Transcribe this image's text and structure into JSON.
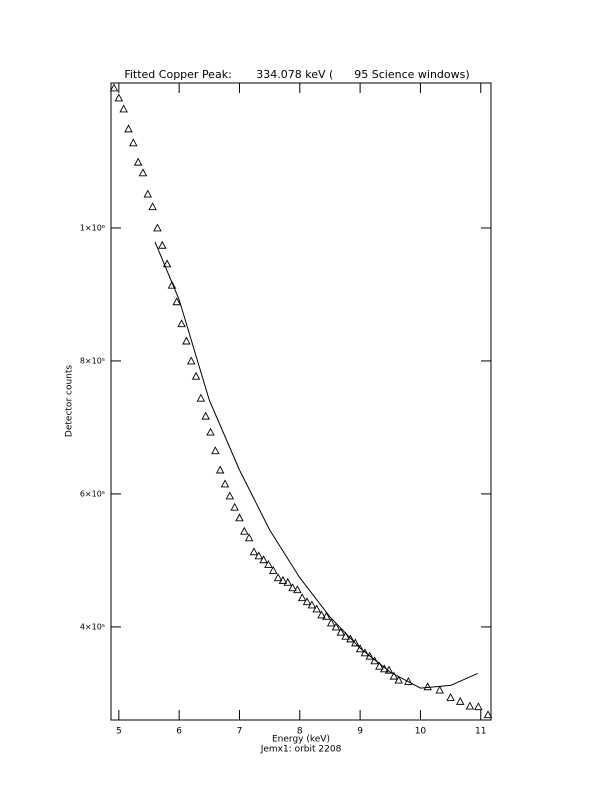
{
  "chart_data": {
    "type": "scatter",
    "title": "Fitted Copper Peak:       334.078 keV (      95 Science windows)",
    "x_label": "Energy (keV)",
    "subtitle": "Jemx1: orbit 2208",
    "y_label": "Detector counts",
    "xlim": [
      4.87,
      11.17
    ],
    "ylim": [
      260000,
      1218000
    ],
    "xticks": [
      5,
      6,
      7,
      8,
      9,
      10,
      11
    ],
    "yticks": [
      {
        "value": 400000,
        "label": "4×10⁵"
      },
      {
        "value": 600000,
        "label": "6×10⁵"
      },
      {
        "value": 800000,
        "label": "8×10⁵"
      },
      {
        "value": 1000000,
        "label": "1×10⁶"
      }
    ],
    "series": [
      {
        "marker": "triangle",
        "color": "#000000",
        "x": [
          4.92,
          5.0,
          5.08,
          5.16,
          5.24,
          5.32,
          5.4,
          5.48,
          5.56,
          5.64,
          5.72,
          5.8,
          5.88,
          5.96,
          6.04,
          6.12,
          6.2,
          6.28,
          6.36,
          6.44,
          6.52,
          6.6,
          6.68,
          6.76,
          6.84,
          6.92,
          7.0,
          7.08,
          7.16,
          7.24,
          7.32,
          7.4,
          7.48,
          7.56,
          7.64,
          7.72,
          7.8,
          7.88,
          7.96,
          8.04,
          8.12,
          8.2,
          8.28,
          8.36,
          8.44,
          8.52,
          8.6,
          8.68,
          8.76,
          8.84,
          8.92,
          9.0,
          9.08,
          9.16,
          9.24,
          9.32,
          9.4,
          9.48,
          9.56,
          9.64,
          9.8,
          10.12,
          10.32,
          10.5,
          10.66,
          10.82,
          10.96,
          11.12
        ],
        "values": [
          1210600,
          1195500,
          1179000,
          1149000,
          1128000,
          1099000,
          1083000,
          1051000,
          1032000,
          1000000,
          974000,
          946000,
          914000,
          889000,
          856000,
          830000,
          800000,
          777000,
          744000,
          717000,
          693000,
          665000,
          636000,
          615000,
          597000,
          580000,
          564000,
          544000,
          534000,
          513000,
          507000,
          501000,
          494000,
          485000,
          474000,
          470000,
          467000,
          459000,
          456000,
          444000,
          438000,
          433000,
          427000,
          418000,
          416000,
          406000,
          400000,
          392000,
          386000,
          382000,
          376000,
          367000,
          361000,
          356000,
          349000,
          341000,
          337000,
          335000,
          326000,
          320000,
          318000,
          310000,
          305000,
          294000,
          288000,
          281000,
          280000,
          268000
        ]
      },
      {
        "marker": "none",
        "color": "#000000",
        "x": [
          5.6,
          6.0,
          6.5,
          7.0,
          7.5,
          8.0,
          8.5,
          9.0,
          9.5,
          10.0,
          10.5,
          10.95
        ],
        "values": [
          979000,
          892000,
          741000,
          636000,
          546000,
          474000,
          415000,
          368000,
          332000,
          308000,
          312000,
          330000
        ]
      }
    ]
  }
}
